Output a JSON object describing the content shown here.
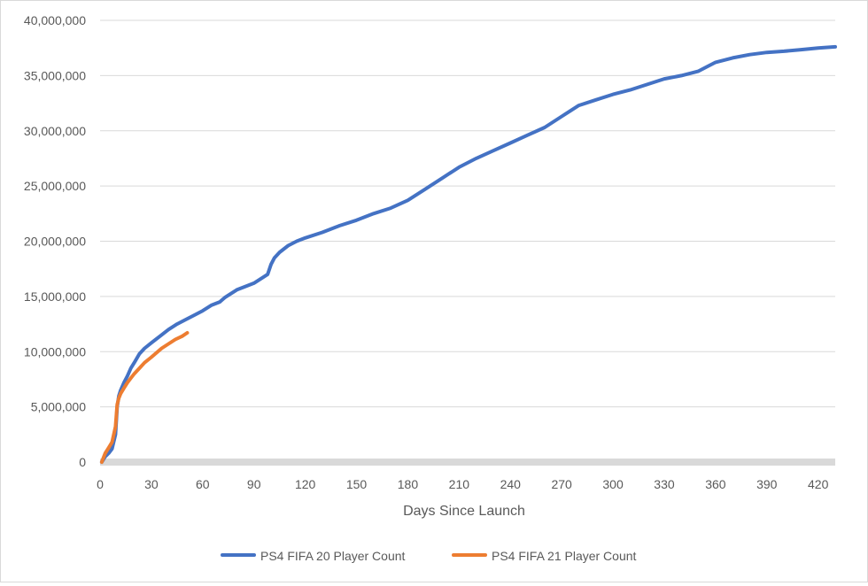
{
  "chart_data": {
    "type": "line",
    "title": "",
    "xlabel": "Days Since Launch",
    "ylabel": "",
    "xlim": [
      0,
      430
    ],
    "ylim": [
      0,
      40000000
    ],
    "x_ticks": [
      "0",
      "30",
      "60",
      "90",
      "120",
      "150",
      "180",
      "210",
      "240",
      "270",
      "300",
      "330",
      "360",
      "390",
      "420"
    ],
    "x_tick_values": [
      0,
      30,
      60,
      90,
      120,
      150,
      180,
      210,
      240,
      270,
      300,
      330,
      360,
      390,
      420
    ],
    "y_ticks": [
      "0",
      "5,000,000",
      "10,000,000",
      "15,000,000",
      "20,000,000",
      "25,000,000",
      "30,000,000",
      "35,000,000",
      "40,000,000"
    ],
    "y_tick_values": [
      0,
      5000000,
      10000000,
      15000000,
      20000000,
      25000000,
      30000000,
      35000000,
      40000000
    ],
    "grid": "horizontal",
    "legend_position": "bottom",
    "series": [
      {
        "name": "PS4 FIFA 20 Player Count",
        "color": "#4472C4",
        "x": [
          1,
          3,
          5,
          7,
          9,
          10,
          11,
          12,
          14,
          16,
          18,
          20,
          23,
          26,
          30,
          35,
          40,
          45,
          50,
          55,
          60,
          65,
          70,
          73,
          75,
          80,
          85,
          90,
          95,
          98,
          100,
          102,
          105,
          110,
          115,
          120,
          130,
          140,
          150,
          160,
          170,
          180,
          190,
          200,
          210,
          220,
          230,
          240,
          250,
          260,
          270,
          280,
          290,
          300,
          310,
          320,
          330,
          340,
          350,
          355,
          360,
          370,
          380,
          390,
          400,
          410,
          420,
          430
        ],
        "y": [
          0,
          500000,
          800000,
          1200000,
          2500000,
          5000000,
          6000000,
          6500000,
          7200000,
          7800000,
          8500000,
          9000000,
          9800000,
          10300000,
          10800000,
          11400000,
          12000000,
          12500000,
          12900000,
          13300000,
          13700000,
          14200000,
          14500000,
          14900000,
          15100000,
          15600000,
          15900000,
          16200000,
          16700000,
          17000000,
          17900000,
          18500000,
          19000000,
          19600000,
          20000000,
          20300000,
          20800000,
          21400000,
          21900000,
          22500000,
          23000000,
          23700000,
          24700000,
          25700000,
          26700000,
          27500000,
          28200000,
          28900000,
          29600000,
          30300000,
          31300000,
          32300000,
          32800000,
          33300000,
          33700000,
          34200000,
          34700000,
          35000000,
          35400000,
          35800000,
          36200000,
          36600000,
          36900000,
          37100000,
          37200000,
          37350000,
          37500000,
          37600000
        ]
      },
      {
        "name": "PS4 FIFA 21 Player Count",
        "color": "#ED7D31",
        "x": [
          1,
          3,
          5,
          7,
          9,
          10,
          11,
          12,
          14,
          16,
          18,
          20,
          23,
          26,
          30,
          33,
          36,
          40,
          44,
          48,
          51
        ],
        "y": [
          0,
          800000,
          1300000,
          1800000,
          3200000,
          5200000,
          5800000,
          6200000,
          6700000,
          7200000,
          7600000,
          8000000,
          8500000,
          9000000,
          9500000,
          9900000,
          10300000,
          10700000,
          11100000,
          11400000,
          11700000
        ]
      }
    ]
  }
}
